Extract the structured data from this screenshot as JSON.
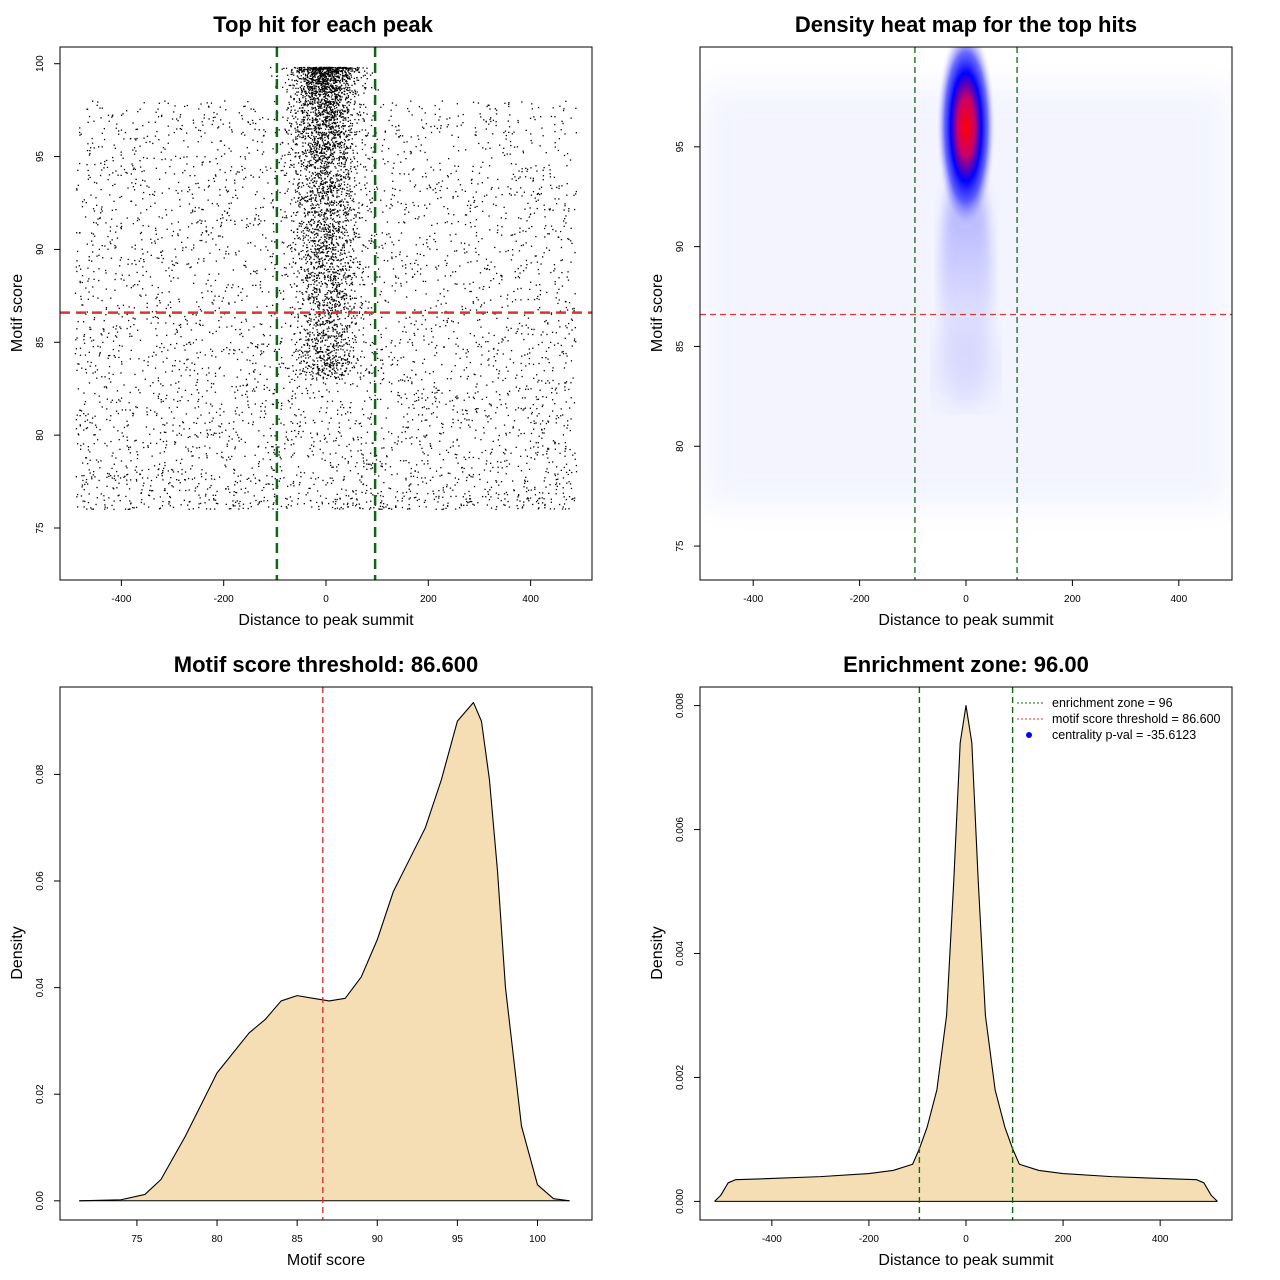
{
  "colors": {
    "threshold_line": "#dd3333",
    "zone_line": "#116611",
    "density_fill": "#f5deb3",
    "heat_high": "#ff0000",
    "heat_mid": "#0000ff",
    "point": "#000000",
    "legend_point": "#0000ff"
  },
  "chart_data": [
    {
      "id": "scatter",
      "type": "scatter",
      "title": "Top hit for each peak",
      "xlabel": "Distance to peak summit",
      "ylabel": "Motif score",
      "xlim": [
        -520,
        520
      ],
      "ylim": [
        72.2,
        100.9
      ],
      "xticks": [
        -400,
        -200,
        0,
        200,
        400
      ],
      "yticks": [
        75,
        80,
        85,
        90,
        95,
        100
      ],
      "hlines": [
        86.6
      ],
      "vlines": [
        -96,
        96
      ],
      "points": {
        "uniform_band": {
          "x": [
            -490,
            490
          ],
          "y": [
            76,
            98
          ],
          "count": 4200
        },
        "central_cluster": {
          "x_center": 0,
          "x_spread": 32,
          "y": [
            83,
            99.8
          ],
          "count": 3600
        }
      }
    },
    {
      "id": "heatmap",
      "type": "heatmap",
      "title": "Density heat map for the top hits",
      "xlabel": "Distance to peak summit",
      "ylabel": "Motif score",
      "xlim": [
        -500,
        500
      ],
      "ylim": [
        73.3,
        100
      ],
      "xticks": [
        -400,
        -200,
        0,
        200,
        400
      ],
      "yticks": [
        75,
        80,
        85,
        90,
        95
      ],
      "hlines": [
        86.6
      ],
      "vlines": [
        -96,
        96
      ],
      "hotspot": {
        "x": 0,
        "y": 96.0,
        "x_spread": 28,
        "y_spread": 2.6
      }
    },
    {
      "id": "score_density",
      "type": "area",
      "title": "Motif score threshold: 86.600",
      "xlabel": "Motif score",
      "ylabel": "Density",
      "xlim": [
        70.2,
        103.4
      ],
      "ylim": [
        -0.0036,
        0.0964
      ],
      "xticks": [
        75,
        80,
        85,
        90,
        95,
        100
      ],
      "yticks": [
        0,
        0.02,
        0.04,
        0.06,
        0.08
      ],
      "ytick_labels": [
        "0.00",
        "0.02",
        "0.04",
        "0.06",
        "0.08"
      ],
      "vlines": [
        86.6
      ],
      "x": [
        71.4,
        74,
        75.5,
        76.5,
        78,
        80,
        82,
        83,
        84,
        85,
        86,
        87,
        88,
        89,
        90,
        91,
        92,
        93,
        94,
        95,
        96,
        96.5,
        97,
        97.5,
        98,
        99,
        100,
        101,
        102
      ],
      "y": [
        0,
        0.0002,
        0.0012,
        0.004,
        0.012,
        0.024,
        0.0315,
        0.034,
        0.0375,
        0.0385,
        0.038,
        0.0375,
        0.038,
        0.042,
        0.049,
        0.058,
        0.064,
        0.07,
        0.079,
        0.09,
        0.0935,
        0.09,
        0.079,
        0.062,
        0.04,
        0.014,
        0.003,
        0.0004,
        0
      ]
    },
    {
      "id": "distance_density",
      "type": "area",
      "title": "Enrichment zone: 96.00",
      "xlabel": "Distance to peak summit",
      "ylabel": "Density",
      "xlim": [
        -548,
        548
      ],
      "ylim": [
        -0.0003,
        0.0083
      ],
      "xticks": [
        -400,
        -200,
        0,
        200,
        400
      ],
      "yticks": [
        0,
        0.002,
        0.004,
        0.006,
        0.008
      ],
      "ytick_labels": [
        "0.000",
        "0.002",
        "0.004",
        "0.006",
        "0.008"
      ],
      "vlines": [
        -96,
        96
      ],
      "x": [
        -518,
        -505,
        -490,
        -475,
        -400,
        -300,
        -200,
        -150,
        -110,
        -96,
        -80,
        -60,
        -40,
        -25,
        -12,
        0,
        12,
        25,
        40,
        60,
        80,
        96,
        110,
        150,
        200,
        300,
        400,
        475,
        490,
        505,
        518
      ],
      "y": [
        0,
        0.0001,
        0.0003,
        0.00035,
        0.00037,
        0.0004,
        0.00045,
        0.0005,
        0.0006,
        0.00085,
        0.0012,
        0.0018,
        0.003,
        0.0052,
        0.0074,
        0.008,
        0.0074,
        0.0052,
        0.003,
        0.0018,
        0.0012,
        0.00085,
        0.0006,
        0.0005,
        0.00045,
        0.0004,
        0.00037,
        0.00035,
        0.0003,
        0.0001,
        0
      ],
      "legend": {
        "position": "top-right",
        "entries": [
          {
            "label": "enrichment zone = 96",
            "style": "dotted",
            "color": "#116611"
          },
          {
            "label": "motif score threshold = 86.600",
            "style": "dotted",
            "color": "#dd3333"
          },
          {
            "label": "centrality p-val = -35.6123",
            "style": "point",
            "color": "#0000ff"
          }
        ]
      }
    }
  ]
}
